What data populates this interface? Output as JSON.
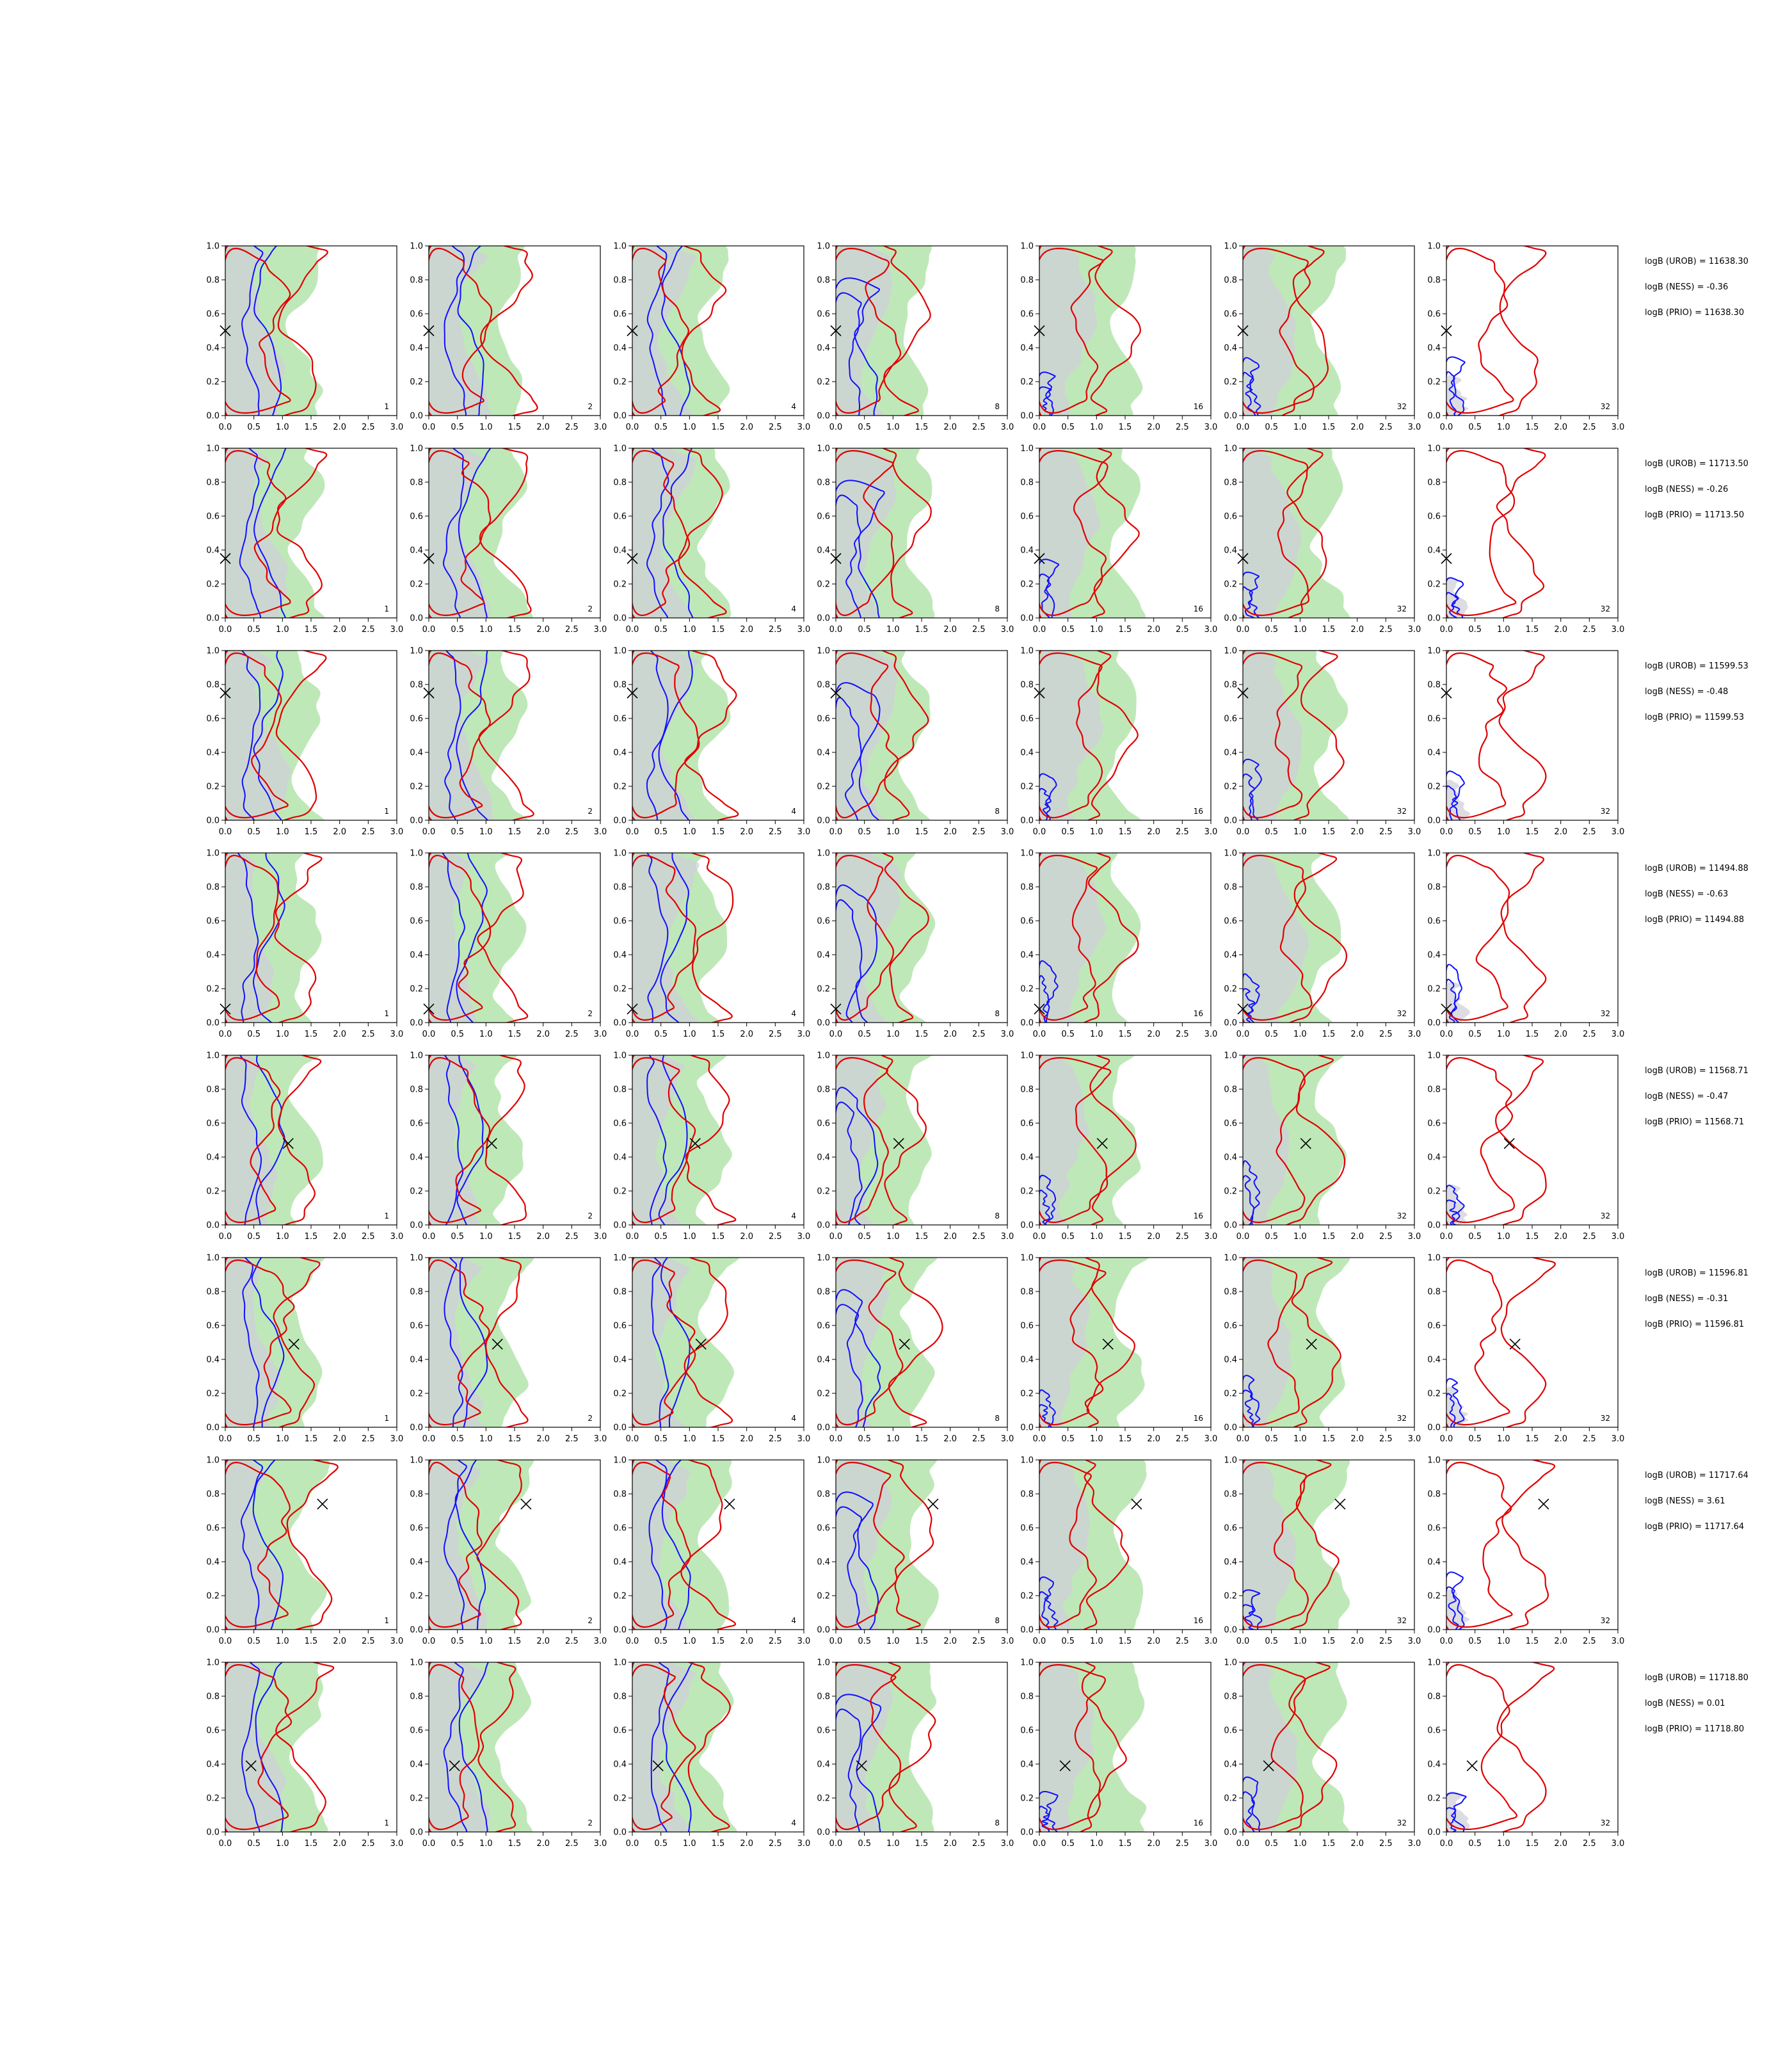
{
  "chart_data": {
    "type": "contour-grid",
    "rows": 8,
    "cols": 7,
    "column_labels": [
      "1",
      "2",
      "4",
      "8",
      "16",
      "32",
      "32"
    ],
    "xlim": [
      0,
      3
    ],
    "ylim": [
      0,
      1
    ],
    "x_ticks": [
      "0.0",
      "0.5",
      "1.0",
      "1.5",
      "2.0",
      "2.5",
      "3.0"
    ],
    "y_ticks": [
      "0.0",
      "0.2",
      "0.4",
      "0.6",
      "0.8",
      "1.0"
    ],
    "colors": {
      "red": "#e00000",
      "blue": "#1010ff",
      "green_fill": "#bfe8b8",
      "gray_fill": "#d0d0d8",
      "axis": "#000000"
    },
    "rows_data": [
      {
        "marker": [
          0,
          0.5
        ],
        "annotations": [
          "logB (UROB) = 11638.30",
          "logB (NESS) = -0.36",
          "logB (PRIO) = 11638.30"
        ]
      },
      {
        "marker": [
          0,
          0.35
        ],
        "annotations": [
          "logB (UROB) = 11713.50",
          "logB (NESS) = -0.26",
          "logB (PRIO) = 11713.50"
        ]
      },
      {
        "marker": [
          0,
          0.75
        ],
        "annotations": [
          "logB (UROB) = 11599.53",
          "logB (NESS) = -0.48",
          "logB (PRIO) = 11599.53"
        ]
      },
      {
        "marker": [
          0,
          0.08
        ],
        "annotations": [
          "logB (UROB) = 11494.88",
          "logB (NESS) = -0.63",
          "logB (PRIO) = 11494.88"
        ]
      },
      {
        "marker": [
          1.1,
          0.48
        ],
        "annotations": [
          "logB (UROB) = 11568.71",
          "logB (NESS) = -0.47",
          "logB (PRIO) = 11568.71"
        ]
      },
      {
        "marker": [
          1.2,
          0.49
        ],
        "annotations": [
          "logB (UROB) = 11596.81",
          "logB (NESS) = -0.31",
          "logB (PRIO) = 11596.81"
        ]
      },
      {
        "marker": [
          1.7,
          0.74
        ],
        "annotations": [
          "logB (UROB) = 11717.64",
          "logB (NESS) = 3.61",
          "logB (PRIO) = 11717.64"
        ]
      },
      {
        "marker": [
          0.45,
          0.39
        ],
        "annotations": [
          "logB (UROB) = 11718.80",
          "logB (NESS) = 0.01",
          "logB (PRIO) = 11718.80"
        ]
      }
    ]
  }
}
